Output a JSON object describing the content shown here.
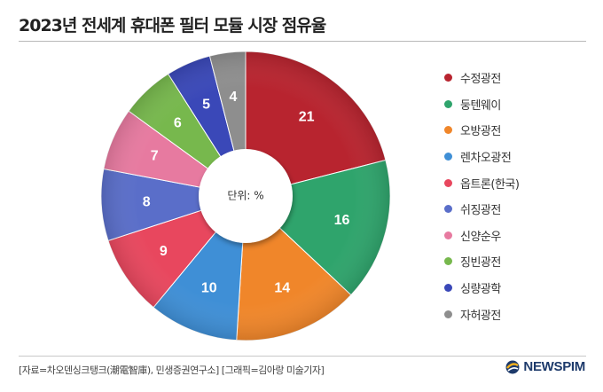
{
  "header": {
    "title": "2023년 전세계 휴대폰 필터 모듈 시장 점유율"
  },
  "chart_data": {
    "type": "pie",
    "title": "2023년 전세계 휴대폰 필터 모듈 시장 점유율",
    "center_label": "단위: %",
    "legend_position": "right",
    "categories": [
      "수정광전",
      "둥텐웨이",
      "오방광전",
      "렌차오광전",
      "옵트론(한국)",
      "쉬징광전",
      "신양순우",
      "징빈광전",
      "싱량광학",
      "자허광전"
    ],
    "values": [
      21,
      16,
      14,
      10,
      9,
      8,
      7,
      6,
      5,
      4
    ],
    "colors": [
      "#b8242f",
      "#2fa46c",
      "#f0862a",
      "#3f8fd6",
      "#e8475e",
      "#5a6ec9",
      "#e77aa0",
      "#77b84d",
      "#3a48b8",
      "#8e8e8e"
    ]
  },
  "footer": {
    "source": "[자료=차오덴싱크탱크(潮電智庫), 민생증권연구소] [그래픽=김아랑 미술기자]",
    "brand": "NEWSPIM",
    "brand_icon": "globe-logo-icon"
  }
}
